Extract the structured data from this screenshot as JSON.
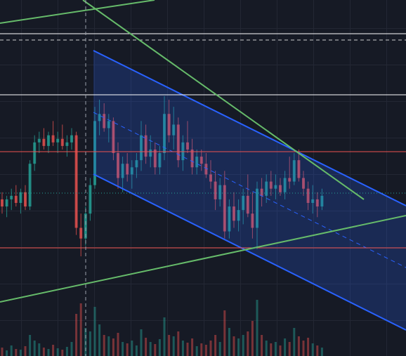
{
  "chart_data": {
    "type": "candlestick",
    "up_color": "#26a69a",
    "down_color": "#ef5350",
    "ylim": [
      0,
      100
    ],
    "y2lim": [
      0,
      100
    ],
    "ohlc": [
      [
        44,
        46,
        40,
        42
      ],
      [
        42,
        45,
        39,
        44
      ],
      [
        44,
        47,
        41,
        45
      ],
      [
        45,
        48,
        42,
        43
      ],
      [
        43,
        47,
        40,
        46
      ],
      [
        46,
        48,
        41,
        42
      ],
      [
        42,
        55,
        41,
        54
      ],
      [
        54,
        62,
        52,
        60
      ],
      [
        60,
        63,
        57,
        61
      ],
      [
        61,
        64,
        58,
        59
      ],
      [
        59,
        63,
        57,
        62
      ],
      [
        62,
        66,
        59,
        60
      ],
      [
        60,
        63,
        57,
        61
      ],
      [
        61,
        65,
        58,
        59
      ],
      [
        59,
        62,
        56,
        60
      ],
      [
        60,
        64,
        58,
        62
      ],
      [
        62,
        63,
        34,
        36
      ],
      [
        36,
        40,
        28,
        33
      ],
      [
        33,
        42,
        31,
        40
      ],
      [
        40,
        50,
        38,
        48
      ],
      [
        48,
        70,
        47,
        66
      ],
      [
        66,
        72,
        62,
        68
      ],
      [
        68,
        71,
        63,
        64
      ],
      [
        64,
        68,
        60,
        66
      ],
      [
        66,
        67,
        55,
        57
      ],
      [
        57,
        60,
        47,
        50
      ],
      [
        50,
        56,
        46,
        54
      ],
      [
        54,
        57,
        49,
        51
      ],
      [
        51,
        55,
        47,
        53
      ],
      [
        53,
        57,
        50,
        55
      ],
      [
        55,
        66,
        52,
        62
      ],
      [
        62,
        65,
        54,
        56
      ],
      [
        56,
        62,
        53,
        58
      ],
      [
        58,
        60,
        51,
        53
      ],
      [
        53,
        59,
        51,
        57
      ],
      [
        57,
        73,
        55,
        68
      ],
      [
        68,
        72,
        60,
        62
      ],
      [
        62,
        70,
        58,
        65
      ],
      [
        65,
        67,
        53,
        55
      ],
      [
        55,
        62,
        52,
        60
      ],
      [
        60,
        66,
        57,
        58
      ],
      [
        58,
        61,
        51,
        53
      ],
      [
        53,
        58,
        51,
        56
      ],
      [
        56,
        58,
        52,
        54
      ],
      [
        54,
        57,
        50,
        51
      ],
      [
        51,
        55,
        47,
        49
      ],
      [
        49,
        52,
        41,
        44
      ],
      [
        44,
        50,
        42,
        48
      ],
      [
        48,
        52,
        33,
        35
      ],
      [
        35,
        44,
        33,
        42
      ],
      [
        42,
        46,
        36,
        38
      ],
      [
        38,
        44,
        35,
        41
      ],
      [
        41,
        47,
        37,
        45
      ],
      [
        45,
        51,
        39,
        40
      ],
      [
        40,
        46,
        33,
        36
      ],
      [
        36,
        49,
        30,
        47
      ],
      [
        47,
        50,
        42,
        45
      ],
      [
        45,
        51,
        43,
        49
      ],
      [
        49,
        52,
        45,
        47
      ],
      [
        47,
        51,
        44,
        48
      ],
      [
        48,
        50,
        45,
        46
      ],
      [
        46,
        52,
        44,
        50
      ],
      [
        50,
        56,
        47,
        49
      ],
      [
        49,
        57,
        48,
        55
      ],
      [
        55,
        58,
        49,
        50
      ],
      [
        50,
        52,
        45,
        47
      ],
      [
        47,
        49,
        41,
        43
      ],
      [
        43,
        48,
        40,
        44
      ],
      [
        44,
        46,
        39,
        42
      ],
      [
        42,
        47,
        41,
        45
      ]
    ],
    "volume": [
      12,
      8,
      15,
      10,
      9,
      14,
      30,
      22,
      18,
      12,
      10,
      16,
      11,
      9,
      13,
      20,
      60,
      75,
      40,
      35,
      70,
      45,
      30,
      28,
      25,
      33,
      20,
      18,
      22,
      15,
      38,
      26,
      20,
      17,
      24,
      55,
      30,
      28,
      35,
      22,
      19,
      25,
      14,
      18,
      16,
      22,
      30,
      20,
      65,
      40,
      28,
      25,
      30,
      35,
      50,
      80,
      30,
      22,
      18,
      20,
      15,
      25,
      20,
      40,
      28,
      22,
      26,
      18,
      15,
      12
    ]
  }
}
